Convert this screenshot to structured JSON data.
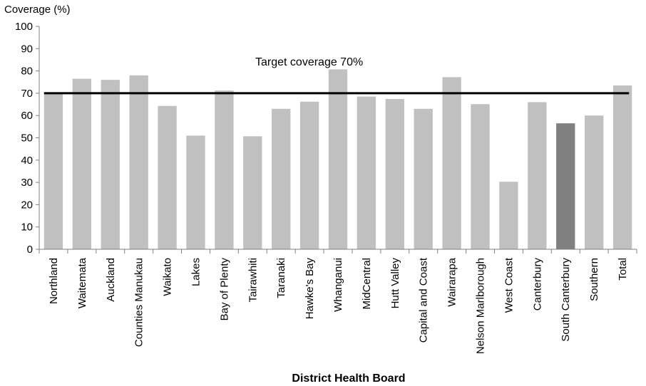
{
  "chart_data": {
    "type": "bar",
    "title": "",
    "ylabel": "Coverage  (%)",
    "xlabel": "District Health Board",
    "ylim": [
      0,
      100
    ],
    "yticks": [
      0,
      10,
      20,
      30,
      40,
      50,
      60,
      70,
      80,
      90,
      100
    ],
    "grid": false,
    "legend": "none",
    "categories": [
      "Northland",
      "Waitemata",
      "Auckland",
      "Counties Manukau",
      "Waikato",
      "Lakes",
      "Bay of Plenty",
      "Tairawhiti",
      "Taranaki",
      "Hawke's Bay",
      "Whanganui",
      "MidCentral",
      "Hutt Valley",
      "Capital and Coast",
      "Wairarapa",
      "Nelson Marlborough",
      "West Coast",
      "Canterbury",
      "South Canterbury",
      "Southern",
      "Total"
    ],
    "values": [
      70,
      76.5,
      76,
      78,
      64.3,
      51,
      71.2,
      50.7,
      63,
      66.2,
      80.7,
      68.5,
      67.4,
      63,
      77.2,
      65.1,
      30.3,
      66,
      56.5,
      60,
      73.5
    ],
    "highlight": "South Canterbury",
    "colors": {
      "bar": "#c0c0c0",
      "highlight": "#808080",
      "target_line": "#000000"
    },
    "target": {
      "value": 70,
      "label": "Target coverage 70%"
    }
  }
}
